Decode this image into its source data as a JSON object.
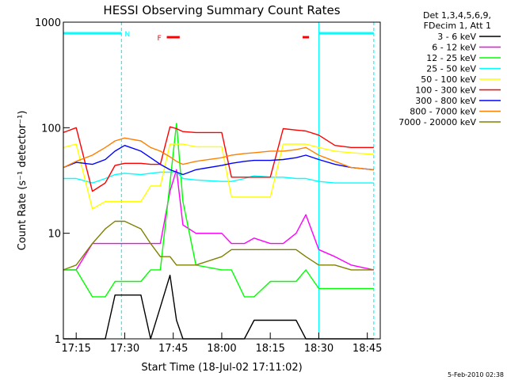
{
  "chart_data": {
    "type": "line",
    "title": "HESSI Observing Summary Count Rates",
    "xlabel": "Start Time (18-Jul-02 17:11:02)",
    "ylabel": "Count Rate (s⁻¹ detector⁻¹)",
    "y_scale": "log",
    "ylim": [
      1,
      1000
    ],
    "xlim": [
      "17:11:02",
      "18:49"
    ],
    "x_ticks": [
      "17:15",
      "17:30",
      "17:45",
      "18:00",
      "18:15",
      "18:30",
      "18:45"
    ],
    "y_ticks": [
      "1",
      "10",
      "100",
      "1000"
    ],
    "legend_header": [
      "Det 1,3,4,5,6,9,",
      "FDecim 1, Att 1"
    ],
    "footer_date": "5-Feb-2010 02:38",
    "flag_labels": {
      "N": "N",
      "F": "F"
    },
    "x": [
      "17:11",
      "17:15",
      "17:20",
      "17:24",
      "17:27",
      "17:30",
      "17:35",
      "17:38",
      "17:41",
      "17:44",
      "17:46",
      "17:48",
      "17:52",
      "18:00",
      "18:03",
      "18:07",
      "18:10",
      "18:15",
      "18:19",
      "18:23",
      "18:26",
      "18:30",
      "18:35",
      "18:40",
      "18:47"
    ],
    "series": [
      {
        "name": "3 - 6 keV",
        "color": "#000000",
        "values": [
          1,
          1,
          1,
          1,
          2.6,
          2.6,
          2.6,
          1,
          2,
          4,
          1.5,
          1,
          1,
          1,
          1,
          1,
          1.5,
          1.5,
          1.5,
          1.5,
          1,
          1,
          1,
          1,
          1
        ]
      },
      {
        "name": "6 - 12 keV",
        "color": "#ff00ff",
        "values": [
          4.5,
          4.5,
          8,
          8,
          8,
          8,
          8,
          8,
          8,
          25,
          40,
          12,
          10,
          10,
          8,
          8,
          9,
          8,
          8,
          10,
          15,
          7,
          6,
          5,
          4.5
        ]
      },
      {
        "name": "12 - 25 keV",
        "color": "#00ff00",
        "values": [
          4.5,
          4.5,
          2.5,
          2.5,
          3.5,
          3.5,
          3.5,
          4.5,
          4.5,
          30,
          110,
          20,
          5,
          4.5,
          4.5,
          2.5,
          2.5,
          3.5,
          3.5,
          3.5,
          4.5,
          3,
          3,
          3,
          3
        ]
      },
      {
        "name": "25 - 50 keV",
        "color": "#00ffff",
        "values": [
          33,
          33,
          30,
          33,
          36,
          37,
          36,
          37,
          38,
          38,
          38,
          33,
          32,
          31,
          31,
          33,
          35,
          34,
          34,
          33,
          33,
          31,
          30,
          30,
          30
        ]
      },
      {
        "name": "50 - 100 keV",
        "color": "#ffff00",
        "values": [
          65,
          70,
          17,
          20,
          20,
          20,
          20,
          28,
          28,
          70,
          70,
          70,
          66,
          66,
          22,
          22,
          22,
          22,
          70,
          70,
          70,
          65,
          60,
          58,
          56
        ]
      },
      {
        "name": "100 - 300 keV",
        "color": "#ff0000",
        "values": [
          90,
          100,
          25,
          30,
          44,
          46,
          46,
          45,
          45,
          102,
          98,
          92,
          90,
          90,
          34,
          34,
          34,
          34,
          98,
          95,
          93,
          85,
          68,
          65,
          65
        ]
      },
      {
        "name": "300 - 800 keV",
        "color": "#0000ff",
        "values": [
          42,
          47,
          45,
          50,
          60,
          68,
          60,
          52,
          45,
          40,
          38,
          36,
          40,
          44,
          46,
          48,
          49,
          49,
          50,
          52,
          55,
          50,
          45,
          42,
          40
        ]
      },
      {
        "name": "800 - 7000 keV",
        "color": "#ff8000",
        "values": [
          42,
          48,
          55,
          65,
          75,
          80,
          75,
          65,
          60,
          53,
          48,
          45,
          48,
          52,
          55,
          57,
          58,
          60,
          60,
          62,
          65,
          55,
          48,
          42,
          40
        ]
      },
      {
        "name": "7000 - 20000 keV",
        "color": "#808000",
        "values": [
          4.5,
          5,
          8,
          11,
          13,
          13,
          11,
          8,
          6,
          6,
          5,
          5,
          5,
          6,
          7,
          7,
          7,
          7,
          7,
          7,
          6,
          5,
          5,
          4.5,
          4.5
        ]
      }
    ]
  },
  "flags": [
    {
      "label": "N",
      "color": "#00ffff",
      "segments": [
        [
          "17:11",
          "17:29"
        ],
        [
          "18:30",
          "18:47"
        ]
      ]
    },
    {
      "label": "F",
      "color": "#ff0000",
      "segments": [
        [
          "17:43",
          "17:47"
        ],
        [
          "18:25",
          "18:27"
        ]
      ]
    }
  ],
  "vertical_lines": [
    {
      "time": "17:11",
      "color": "#00ffff",
      "style": "solid"
    },
    {
      "time": "17:29",
      "color": "#00ffff",
      "style": "dashed"
    },
    {
      "time": "18:30",
      "color": "#00ffff",
      "style": "solid"
    },
    {
      "time": "18:47",
      "color": "#00ffff",
      "style": "dashed"
    }
  ]
}
